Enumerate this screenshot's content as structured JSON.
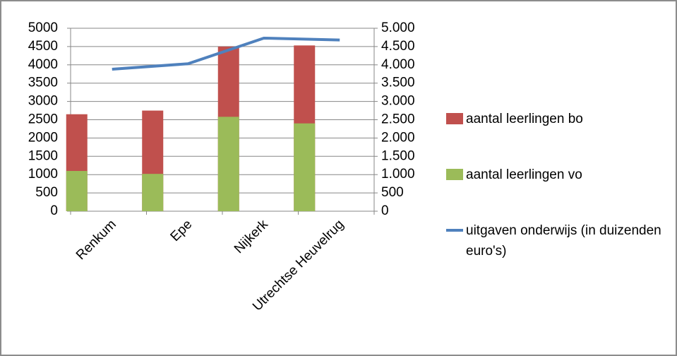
{
  "chart_data": {
    "type": "bar",
    "categories": [
      "Renkum",
      "Epe",
      "Nijkerk",
      "Utrechtse Heuvelrug"
    ],
    "series": [
      {
        "name": "aantal leerlingen bo",
        "color": "#c0504d",
        "values": [
          2650,
          2750,
          4500,
          4530
        ]
      },
      {
        "name": "aantal leerlingen vo",
        "color": "#9bbb59",
        "values": [
          1100,
          1020,
          2580,
          2400
        ]
      },
      {
        "name": "uitgaven onderwijs (in duizenden euro's)",
        "color": "#4f81bd",
        "type": "line",
        "axis": "y2",
        "values": [
          3880,
          4030,
          4730,
          4680
        ]
      }
    ],
    "ylim": [
      0,
      5000
    ],
    "yticks": [
      0,
      500,
      1000,
      1500,
      2000,
      2500,
      3000,
      3500,
      4000,
      4500,
      5000
    ],
    "y2lim": [
      0,
      5000
    ],
    "y2ticks": [
      0,
      {
        "value": 500,
        "label": "500"
      },
      {
        "value": 1000,
        "label": "1.000"
      },
      {
        "value": 1500,
        "label": "1.500"
      },
      {
        "value": 2000,
        "label": "2.000"
      },
      {
        "value": 2500,
        "label": "2.500"
      },
      {
        "value": 3000,
        "label": "3.000"
      },
      {
        "value": 3500,
        "label": "3.500"
      },
      {
        "value": 4000,
        "label": "4.000"
      },
      {
        "value": 4500,
        "label": "4.500"
      },
      {
        "value": 5000,
        "label": "5.000"
      }
    ],
    "grid": true,
    "legend": "right"
  }
}
